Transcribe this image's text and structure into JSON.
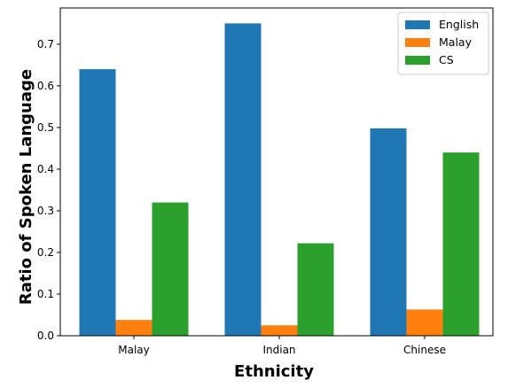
{
  "chart_data": {
    "type": "bar",
    "categories": [
      "Malay",
      "Indian",
      "Chinese"
    ],
    "series": [
      {
        "name": "English",
        "values": [
          0.64,
          0.75,
          0.498
        ],
        "color": "#1f77b4"
      },
      {
        "name": "Malay",
        "values": [
          0.038,
          0.025,
          0.063
        ],
        "color": "#ff7f0e"
      },
      {
        "name": "CS",
        "values": [
          0.32,
          0.222,
          0.44
        ],
        "color": "#2ca02c"
      }
    ],
    "xlabel": "Ethnicity",
    "ylabel": "Ratio of Spoken Language",
    "ylim": [
      0,
      0.787
    ],
    "yticks": [
      0.0,
      0.1,
      0.2,
      0.3,
      0.4,
      0.5,
      0.6,
      0.7
    ],
    "ytick_labels": [
      "0.0",
      "0.1",
      "0.2",
      "0.3",
      "0.4",
      "0.5",
      "0.6",
      "0.7"
    ],
    "grid": false,
    "legend_position": "top-right"
  }
}
